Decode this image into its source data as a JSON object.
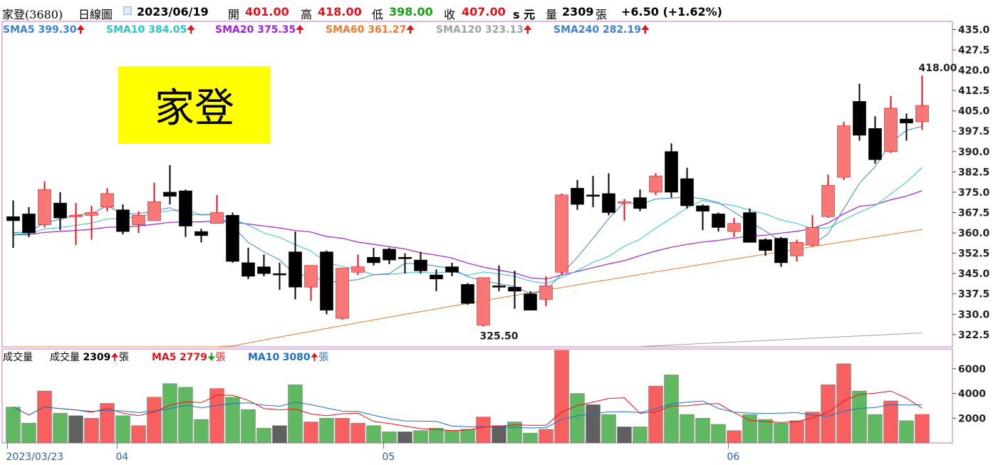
{
  "header": {
    "stock": "家登(3680)",
    "period": "日線圖",
    "date": "2023/06/19",
    "open_label": "開",
    "open": "401.00",
    "high_label": "高",
    "high": "418.00",
    "low_label": "低",
    "low": "398.00",
    "close_label": "收",
    "close": "407.00",
    "close_suffix": "s 元",
    "volume_label": "量",
    "volume": "2309",
    "volume_unit": "張",
    "change": "+6.50 (+1.62%)"
  },
  "sma_legend": [
    {
      "label": "SMA5",
      "value": "399.30",
      "color": "#3c82d2"
    },
    {
      "label": "SMA10",
      "value": "384.05",
      "color": "#2ec4c4"
    },
    {
      "label": "SMA20",
      "value": "375.35",
      "color": "#a020e0"
    },
    {
      "label": "SMA60",
      "value": "361.27",
      "color": "#f07830"
    },
    {
      "label": "SMA120",
      "value": "323.13",
      "color": "#a0a0a0"
    },
    {
      "label": "SMA240",
      "value": "282.19",
      "color": "#3c82d2"
    }
  ],
  "volume_legend": {
    "title": "成交量",
    "vol_label": "成交量",
    "vol_value": "2309",
    "vol_unit": "張",
    "ma5_label": "MA5",
    "ma5_value": "2779",
    "ma5_unit": "張",
    "ma10_label": "MA10",
    "ma10_value": "3080",
    "ma10_unit": "張"
  },
  "name_box": "家登",
  "chart_data": {
    "type": "candlestick",
    "price_axis": {
      "ticks": [
        "435.0",
        "427.5",
        "420.0",
        "412.5",
        "405.0",
        "397.5",
        "390.0",
        "382.5",
        "375.0",
        "367.5",
        "360.0",
        "352.5",
        "345.0",
        "337.5",
        "330.0",
        "322.5"
      ],
      "range": [
        318,
        438
      ]
    },
    "volume_axis": {
      "ticks": [
        "6000",
        "4000",
        "2000"
      ],
      "range": [
        0,
        7600
      ]
    },
    "date_labels": [
      {
        "label": "2023/03/23",
        "index": 0
      },
      {
        "label": "04",
        "index": 7
      },
      {
        "label": "05",
        "index": 24
      },
      {
        "label": "06",
        "index": 46
      }
    ],
    "annotations": [
      {
        "text": "418.00",
        "index": 59,
        "price": 418.0
      },
      {
        "text": "325.50",
        "index": 31,
        "price": 325.5
      }
    ],
    "colors": {
      "up": "#f87878",
      "up_wick": "#e0141e",
      "down": "#000000",
      "vol_up": "#f86060",
      "vol_down": "#60b860",
      "vol_flat": "#606060"
    },
    "candles": [
      {
        "o": 366.0,
        "c": 364.5,
        "h": 372.0,
        "l": 354.5,
        "v": 2900
      },
      {
        "o": 367.0,
        "c": 360.0,
        "h": 369.5,
        "l": 358.5,
        "v": 1600
      },
      {
        "o": 363.0,
        "c": 376.0,
        "h": 379.0,
        "l": 362.0,
        "v": 4200
      },
      {
        "o": 371.0,
        "c": 365.5,
        "h": 375.0,
        "l": 361.0,
        "v": 2400
      },
      {
        "o": 366.0,
        "c": 366.5,
        "h": 371.0,
        "l": 355.5,
        "v": 2200
      },
      {
        "o": 366.5,
        "c": 367.5,
        "h": 370.0,
        "l": 357.5,
        "v": 2000
      },
      {
        "o": 369.5,
        "c": 374.5,
        "h": 376.5,
        "l": 368.0,
        "v": 3200
      },
      {
        "o": 368.5,
        "c": 360.5,
        "h": 370.5,
        "l": 359.5,
        "v": 2200
      },
      {
        "o": 363.0,
        "c": 366.5,
        "h": 368.0,
        "l": 360.0,
        "v": 1400
      },
      {
        "o": 364.5,
        "c": 371.5,
        "h": 378.5,
        "l": 364.5,
        "v": 3700
      },
      {
        "o": 375.0,
        "c": 373.5,
        "h": 385.0,
        "l": 370.5,
        "v": 4800
      },
      {
        "o": 375.5,
        "c": 362.5,
        "h": 376.0,
        "l": 358.5,
        "v": 4500
      },
      {
        "o": 360.5,
        "c": 359.0,
        "h": 361.5,
        "l": 356.5,
        "v": 1900
      },
      {
        "o": 363.5,
        "c": 367.5,
        "h": 374.0,
        "l": 363.5,
        "v": 4400
      },
      {
        "o": 366.5,
        "c": 349.5,
        "h": 367.5,
        "l": 349.0,
        "v": 3700
      },
      {
        "o": 349.0,
        "c": 344.0,
        "h": 354.5,
        "l": 343.0,
        "v": 2700
      },
      {
        "o": 347.5,
        "c": 345.0,
        "h": 352.0,
        "l": 344.0,
        "v": 1200
      },
      {
        "o": 345.0,
        "c": 344.5,
        "h": 349.0,
        "l": 339.0,
        "v": 1400
      },
      {
        "o": 353.0,
        "c": 340.0,
        "h": 360.5,
        "l": 335.5,
        "v": 4700
      },
      {
        "o": 340.0,
        "c": 348.0,
        "h": 348.0,
        "l": 335.0,
        "v": 1700
      },
      {
        "o": 353.0,
        "c": 331.5,
        "h": 353.5,
        "l": 330.0,
        "v": 2000
      },
      {
        "o": 328.5,
        "c": 347.0,
        "h": 347.0,
        "l": 328.0,
        "v": 2000
      },
      {
        "o": 345.5,
        "c": 347.5,
        "h": 352.0,
        "l": 344.5,
        "v": 1600
      },
      {
        "o": 351.0,
        "c": 349.0,
        "h": 354.5,
        "l": 348.0,
        "v": 1400
      },
      {
        "o": 354.0,
        "c": 350.0,
        "h": 354.5,
        "l": 348.5,
        "v": 900
      },
      {
        "o": 351.0,
        "c": 350.5,
        "h": 352.5,
        "l": 345.0,
        "v": 900
      },
      {
        "o": 350.0,
        "c": 346.0,
        "h": 353.0,
        "l": 345.0,
        "v": 1000
      },
      {
        "o": 344.5,
        "c": 343.0,
        "h": 346.5,
        "l": 338.5,
        "v": 1200
      },
      {
        "o": 347.5,
        "c": 345.5,
        "h": 349.0,
        "l": 344.0,
        "v": 1000
      },
      {
        "o": 341.0,
        "c": 334.0,
        "h": 341.5,
        "l": 333.5,
        "v": 1100
      },
      {
        "o": 326.0,
        "c": 343.5,
        "h": 343.5,
        "l": 325.5,
        "v": 2100
      },
      {
        "o": 340.5,
        "c": 340.0,
        "h": 348.0,
        "l": 338.5,
        "v": 1400
      },
      {
        "o": 340.0,
        "c": 338.5,
        "h": 346.0,
        "l": 332.0,
        "v": 1700
      },
      {
        "o": 337.5,
        "c": 331.5,
        "h": 338.5,
        "l": 331.5,
        "v": 800
      },
      {
        "o": 335.5,
        "c": 340.5,
        "h": 344.0,
        "l": 333.0,
        "v": 1100
      },
      {
        "o": 345.5,
        "c": 374.0,
        "h": 374.5,
        "l": 344.5,
        "v": 7500
      },
      {
        "o": 376.5,
        "c": 370.5,
        "h": 379.5,
        "l": 368.5,
        "v": 4000
      },
      {
        "o": 374.0,
        "c": 373.5,
        "h": 381.0,
        "l": 369.5,
        "v": 3100
      },
      {
        "o": 374.5,
        "c": 367.5,
        "h": 382.0,
        "l": 366.5,
        "v": 2300
      },
      {
        "o": 371.0,
        "c": 371.5,
        "h": 372.5,
        "l": 364.5,
        "v": 1300
      },
      {
        "o": 373.0,
        "c": 369.0,
        "h": 376.0,
        "l": 368.0,
        "v": 1300
      },
      {
        "o": 375.0,
        "c": 381.0,
        "h": 382.0,
        "l": 374.0,
        "v": 4600
      },
      {
        "o": 390.0,
        "c": 375.0,
        "h": 393.0,
        "l": 373.0,
        "v": 5500
      },
      {
        "o": 380.0,
        "c": 370.0,
        "h": 384.0,
        "l": 369.0,
        "v": 2300
      },
      {
        "o": 370.0,
        "c": 368.0,
        "h": 370.5,
        "l": 361.0,
        "v": 2000
      },
      {
        "o": 367.0,
        "c": 362.0,
        "h": 367.5,
        "l": 360.5,
        "v": 1500
      },
      {
        "o": 360.5,
        "c": 363.5,
        "h": 365.5,
        "l": 358.5,
        "v": 1000
      },
      {
        "o": 367.5,
        "c": 356.5,
        "h": 369.0,
        "l": 356.5,
        "v": 2300
      },
      {
        "o": 357.5,
        "c": 353.5,
        "h": 358.0,
        "l": 351.5,
        "v": 1900
      },
      {
        "o": 358.0,
        "c": 349.0,
        "h": 358.5,
        "l": 347.5,
        "v": 1600
      },
      {
        "o": 351.5,
        "c": 356.5,
        "h": 357.5,
        "l": 349.5,
        "v": 1800
      },
      {
        "o": 355.5,
        "c": 362.0,
        "h": 366.5,
        "l": 355.0,
        "v": 2500
      },
      {
        "o": 366.0,
        "c": 377.5,
        "h": 381.5,
        "l": 365.5,
        "v": 4700
      },
      {
        "o": 380.5,
        "c": 399.5,
        "h": 401.0,
        "l": 379.5,
        "v": 6400
      },
      {
        "o": 408.5,
        "c": 396.0,
        "h": 415.0,
        "l": 394.0,
        "v": 4200
      },
      {
        "o": 398.5,
        "c": 387.0,
        "h": 403.0,
        "l": 385.5,
        "v": 2300
      },
      {
        "o": 390.0,
        "c": 406.0,
        "h": 410.5,
        "l": 389.5,
        "v": 3400
      },
      {
        "o": 402.0,
        "c": 400.5,
        "h": 404.0,
        "l": 394.0,
        "v": 1800
      },
      {
        "o": 401.0,
        "c": 407.0,
        "h": 418.0,
        "l": 398.0,
        "v": 2309
      }
    ]
  }
}
